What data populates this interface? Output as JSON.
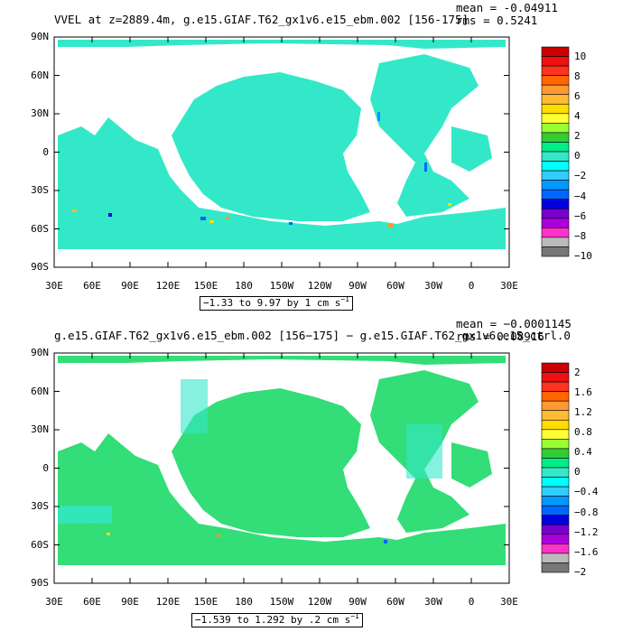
{
  "panels": [
    {
      "title": "VVEL at z=2889.4m, g.e15.GIAF.T62_gx1v6.e15_ebm.002 [156-175]",
      "mean": "mean = -0.04911",
      "rms": "rms = 0.5241",
      "range": "−1.33 to 9.97 by 1 cm s",
      "range_unit_exp": "−1",
      "y_ticks": [
        "90N",
        "60N",
        "30N",
        "0",
        "30S",
        "60S",
        "90S"
      ],
      "x_ticks": [
        "30E",
        "60E",
        "90E",
        "120E",
        "150E",
        "180",
        "150W",
        "120W",
        "90W",
        "60W",
        "30W",
        "0",
        "30E"
      ],
      "colorbar_labels": [
        "10",
        "8",
        "6",
        "4",
        "2",
        "0",
        "−2",
        "−4",
        "−6",
        "−8",
        "−10"
      ],
      "ocean_color": "#33e8c8",
      "colorbar_colors": [
        "#cc0000",
        "#ee1111",
        "#ff3322",
        "#ff6600",
        "#ff9933",
        "#ffbb33",
        "#ffdd00",
        "#ffff33",
        "#99ff33",
        "#33cc33",
        "#00ee88",
        "#33e8c8",
        "#00ffff",
        "#33ccff",
        "#0099ff",
        "#0066ff",
        "#0000dd",
        "#7700cc",
        "#aa00dd",
        "#ff33cc",
        "#bbbbbb",
        "#777777"
      ]
    },
    {
      "title": "g.e15.GIAF.T62_gx1v6.e15_ebm.002 [156−175] − g.e15.GIAF.T62_gx1v6.e15_ctrl.0",
      "mean": "mean = −0.0001145",
      "rms": "rms = 0.08916",
      "range": "−1.539 to 1.292 by .2 cm s",
      "range_unit_exp": "−1",
      "y_ticks": [
        "90N",
        "60N",
        "30N",
        "0",
        "30S",
        "60S",
        "90S"
      ],
      "x_ticks": [
        "30E",
        "60E",
        "90E",
        "120E",
        "150E",
        "180",
        "150W",
        "120W",
        "90W",
        "60W",
        "30W",
        "0",
        "30E"
      ],
      "colorbar_labels": [
        "2",
        "1.6",
        "1.2",
        "0.8",
        "0.4",
        "0",
        "−0.4",
        "−0.8",
        "−1.2",
        "−1.6",
        "−2"
      ],
      "ocean_color": "#33dd77",
      "colorbar_colors": [
        "#cc0000",
        "#ee1111",
        "#ff3322",
        "#ff6600",
        "#ff9933",
        "#ffbb33",
        "#ffdd00",
        "#ffff33",
        "#99ff33",
        "#33cc33",
        "#00ee88",
        "#33e8c8",
        "#00ffff",
        "#33ccff",
        "#0099ff",
        "#0066ff",
        "#0000dd",
        "#7700cc",
        "#aa00dd",
        "#ff33cc",
        "#bbbbbb",
        "#777777"
      ]
    }
  ]
}
